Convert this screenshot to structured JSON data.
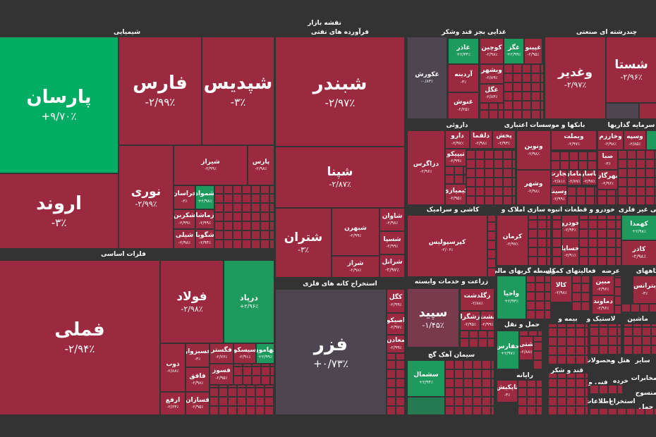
{
  "title": "نقشه بازار",
  "colors": {
    "down": "#9b2a40",
    "up": "#1f9a5e",
    "strong_up": "#00ad62",
    "neutral": "#4d4650",
    "background": "#333333"
  },
  "sectors": {
    "chem": "شیمیایی",
    "oil": "فرآورده های نفتی",
    "food": "غذایی بجز قند وشکر",
    "multi": "چندرشته ای صنعتی",
    "metal": "فلزات اساسی",
    "mining": "استخراج کانه های فلزی",
    "pharma": "داروئی",
    "banks": "بانکها و موسسات اعتباری",
    "invest": "سرمایه گذاریها",
    "tile": "کاشی و سرامیک",
    "build": "انبوه سازی املاک و",
    "auto": "خودرو و قطعات",
    "nonmetal": "کانی غیر فلزی",
    "agri": "زراعت و خدمات وابسته",
    "fin": "واسطه گریهای مالی",
    "aux": "فعالیتهای کمکی",
    "supply": "عرضه",
    "ganaha": "گاههای",
    "cement": "سیمان آهک گچ",
    "transport": "حمل و نقل",
    "insurance": "بیمه و",
    "rubber": "لاستیک و",
    "machine": "ماشین",
    "computer": "رایانه",
    "sugar": "قند و شکر",
    "products": "محصولات",
    "hotel": "هتل و",
    "other": "سایر",
    "telecom": "مخابرات",
    "tech": "فنی و",
    "retail": "خرده",
    "info": "اطلاعات",
    "extract": "استخراج",
    "textile": "منسوج",
    "haml": "حمل"
  },
  "tiles": {
    "parsan": {
      "n": "پارسان",
      "v": "+۹/۷۰٪"
    },
    "arvand": {
      "n": "اروند",
      "v": "-۳٪"
    },
    "fars": {
      "n": "فارس",
      "v": "-۲/۹۹٪"
    },
    "shpdis": {
      "n": "شپدیس",
      "v": "-۳٪"
    },
    "nouri": {
      "n": "نوری",
      "v": "-۲/۹۹٪"
    },
    "shiraz": {
      "n": "شیراز",
      "v": "-۲/۹۹٪"
    },
    "pars": {
      "n": "پارس",
      "v": "-۲/۹۸٪"
    },
    "khorasan": {
      "n": "خراسان",
      "v": "-۳٪"
    },
    "shmavad": {
      "n": "شمواد",
      "v": "+۲/۹۸٪"
    },
    "shkarin": {
      "n": "شکربن",
      "v": "-۲/۹۹٪"
    },
    "zmasha": {
      "n": "زماشا",
      "v": "-۲/۹۹٪"
    },
    "shili": {
      "n": "شیلی",
      "v": "-۲/۹۸٪"
    },
    "shgoya": {
      "n": "شگویا",
      "v": "-۲/۹۴٪"
    },
    "fameli": {
      "n": "فملی",
      "v": "-۲/۹۴٪"
    },
    "foolad": {
      "n": "فولاد",
      "v": "-۲/۹۸٪"
    },
    "dorpad": {
      "n": "درپاد",
      "v": "+۲/۹۶٪"
    },
    "zob": {
      "n": "ذوب",
      "v": "-۲/۸۸٪"
    },
    "arfa": {
      "n": "ارفع",
      "v": "-۲/۶۴٪"
    },
    "fsabzevar": {
      "n": "فسبزوار",
      "v": "-۳٪"
    },
    "faqq": {
      "n": "فاقق",
      "v": "-۲/۹۸٪"
    },
    "fsazan": {
      "n": "فسازان",
      "v": "-۲/۹۵٪"
    },
    "fgostar": {
      "n": "فگستر",
      "v": "-۲/۷۶٪"
    },
    "sisco": {
      "n": "سیسکو",
      "v": "-۲/۹۱٪"
    },
    "fhamoon": {
      "n": "فهامون",
      "v": "+۲/۹۹٪"
    },
    "fsooz": {
      "n": "فسوز",
      "v": "-۲/۹۵٪"
    },
    "shbandar": {
      "n": "شبندر",
      "v": "-۲/۹۷٪"
    },
    "shpna": {
      "n": "شپنا",
      "v": "-۲/۸۷٪"
    },
    "shtran": {
      "n": "شتران",
      "v": "-۳٪"
    },
    "shbehran": {
      "n": "شبهرن",
      "v": "-۲/۹۹٪"
    },
    "shraz": {
      "n": "شراز",
      "v": "-۲/۹۸٪"
    },
    "shavan": {
      "n": "شاوان",
      "v": "-۲/۹۸٪"
    },
    "shspa": {
      "n": "شسپا",
      "v": "-۲/۹۹٪"
    },
    "shranol": {
      "n": "شرانل",
      "v": "-۲/۹۷٪"
    },
    "fazar": {
      "n": "فزر",
      "v": "+۰/۷۳٪"
    },
    "kgol": {
      "n": "کگل",
      "v": "-۲/۹۹٪"
    },
    "esiko": {
      "n": "اصیکو",
      "v": "-۲/۹۷٪"
    },
    "maaden": {
      "n": "معادن",
      "v": "-۲/۹۹٪"
    },
    "ghkorosh": {
      "n": "غکورش",
      "v": "-۰/۸۳٪"
    },
    "ghazar": {
      "n": "غاذر",
      "v": "+۲/۳۴٪"
    },
    "koochin": {
      "n": "کوچین",
      "v": "-۲/۹۸٪"
    },
    "ghgaz": {
      "n": "غگز",
      "v": "+۲/۹۹٪"
    },
    "ghpino": {
      "n": "غپینو",
      "v": "-۲/۹۵٪"
    },
    "ardineh": {
      "n": "آردینه",
      "v": "-۳٪"
    },
    "ghnoosh": {
      "n": "غنوش",
      "v": "-۲/۲۵٪"
    },
    "vbshahr": {
      "n": "وبشهر",
      "v": "-۲/۸۹٪"
    },
    "ghgol": {
      "n": "غگل",
      "v": "-۲/۸۴٪"
    },
    "vghadir": {
      "n": "وغدیر",
      "v": "-۲/۹۷٪"
    },
    "shasta": {
      "n": "شستا",
      "v": "-۲/۹۶٪"
    },
    "dzagros": {
      "n": "دزاگرس",
      "v": "-۲/۹۶٪"
    },
    "daroo": {
      "n": "دارو",
      "v": "-۲/۹۷٪"
    },
    "dloqma": {
      "n": "دلقما",
      "v": "-۲/۹۸٪"
    },
    "pakhsh": {
      "n": "پخش",
      "v": "-۲/۹۳٪"
    },
    "tipico": {
      "n": "تیپیکو",
      "v": "-۲/۹۹٪"
    },
    "kimiazi": {
      "n": "کیمیازی",
      "v": "-۲/۹۵٪"
    },
    "vnovin": {
      "n": "ونوین",
      "v": "-۲/۹۸٪"
    },
    "vbmellat": {
      "n": "وبملت",
      "v": "-۲/۹۷٪"
    },
    "vshahr": {
      "n": "وشهر",
      "v": "-۲/۹۸٪"
    },
    "tejarat": {
      "n": "تجارت",
      "v": "-۲/۸۱٪"
    },
    "saman": {
      "n": "سامان",
      "v": "-۲/۷۷٪"
    },
    "pasar": {
      "n": "پاسار",
      "v": "-۲/۹۷٪"
    },
    "vsina": {
      "n": "وسینا",
      "v": "-۲/۹۹٪"
    },
    "vkharazm": {
      "n": "وخارزم",
      "v": "-۲/۹۸٪"
    },
    "vsepah": {
      "n": "وسپه",
      "v": "-۲/۸۵٪"
    },
    "saba": {
      "n": "صبا",
      "v": "-۳٪"
    },
    "mehregan": {
      "n": "مهرگان",
      "v": "-۲/۹۶٪"
    },
    "kpersepolis": {
      "n": "کپرسپولیس",
      "v": "-۲/۰۶٪"
    },
    "kerman": {
      "n": "کرمان",
      "v": "-۲/۹۷٪"
    },
    "khodro": {
      "n": "خودرو",
      "v": "-۲/۹۴٪"
    },
    "khsapa": {
      "n": "خساپا",
      "v": "-۲/۹۱٪"
    },
    "khamda": {
      "n": "کهمدا",
      "v": "+۲/۹۸٪"
    },
    "kazar": {
      "n": "کاذر",
      "v": "-۲/۹۸٪"
    },
    "sepid": {
      "n": "سپید",
      "v": "-۱/۴۵٪"
    },
    "zgoldasht": {
      "n": "زگلدشت",
      "v": "-۲/۸۸٪"
    },
    "zshgza": {
      "n": "زشگزا",
      "v": "-۲/۹۵٪"
    },
    "nasht": {
      "n": "نشت",
      "v": "-۲/۹۹٪"
    },
    "vahya": {
      "n": "واحیا",
      "v": "+۲/۹۳٪"
    },
    "kala": {
      "n": "کالا",
      "v": "-۲/۹۸٪"
    },
    "mobin": {
      "n": "مبین",
      "v": "-۲/۹۶٪"
    },
    "damavand": {
      "n": "دماوند",
      "v": "-۲/۹۶٪"
    },
    "btrans": {
      "n": "بترانس",
      "v": "-۳٪"
    },
    "sshomal": {
      "n": "سشمال",
      "v": "+۲/۹۴٪"
    },
    "hfars": {
      "n": "حفارس",
      "v": "+۲/۹۷٪"
    },
    "shetti": {
      "n": "شتی",
      "v": "-۲/۸۸٪"
    },
    "tapkish": {
      "n": "تاپکیش",
      "v": "-۳٪"
    }
  }
}
